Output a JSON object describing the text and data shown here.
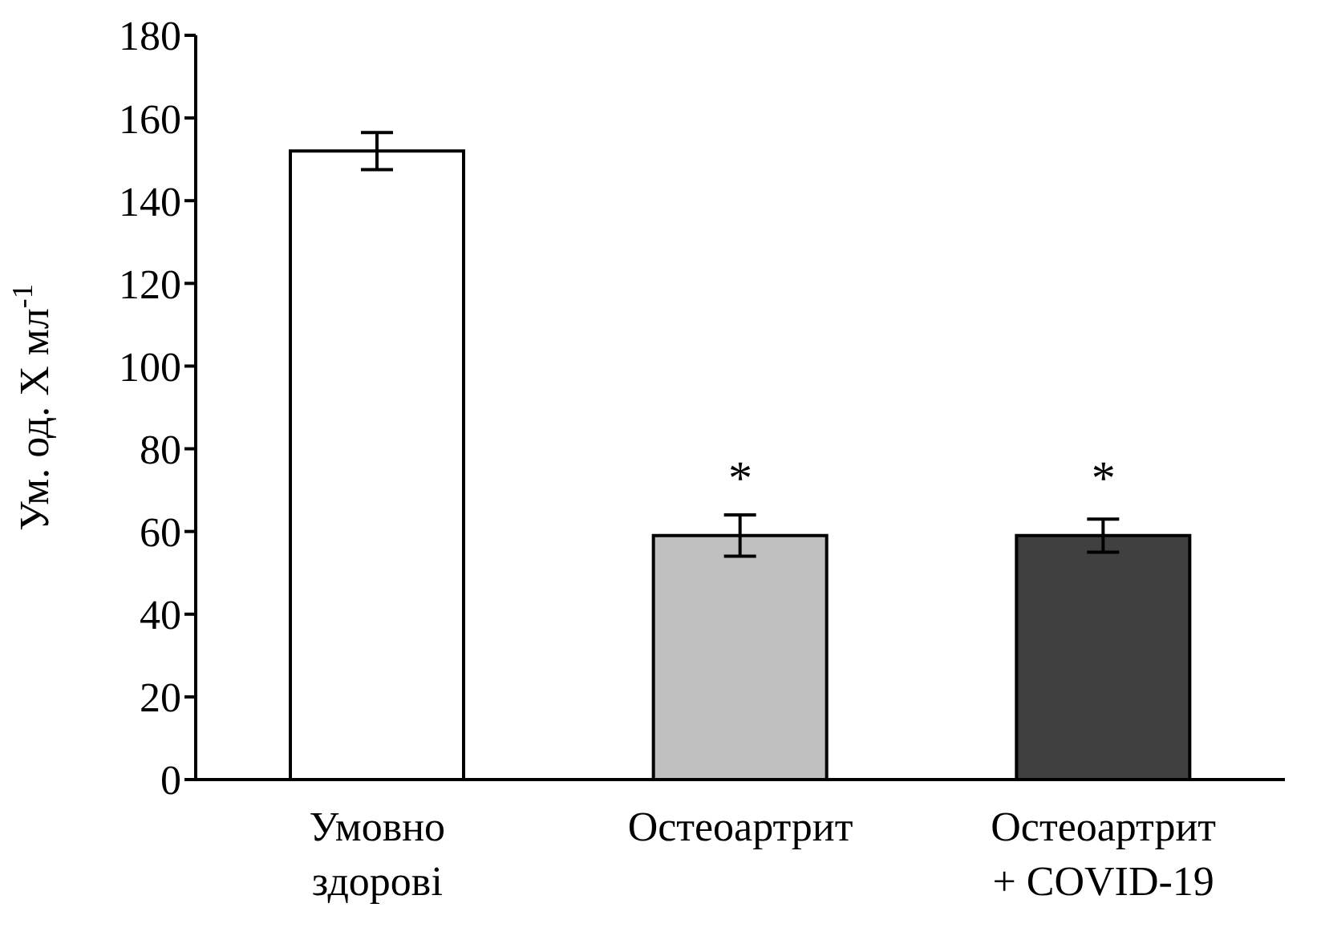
{
  "chart_data": {
    "type": "bar",
    "ylabel": "Ум. од. X мл$^{-1}$",
    "categories": [
      "Умовно здорові",
      "Остеоартрит",
      "Остеоартрит + COVID-19"
    ],
    "values": [
      152,
      59,
      59
    ],
    "errors": [
      4.5,
      5,
      4
    ],
    "colors": [
      "#ffffff",
      "#c0c0c0",
      "#404040"
    ],
    "ylim": [
      0,
      180
    ],
    "yticks": [
      0,
      20,
      40,
      60,
      80,
      100,
      120,
      140,
      160,
      180
    ],
    "grid": false,
    "annotations": [
      {
        "text": "*",
        "x": "Остеоартрит",
        "y": 59
      },
      {
        "text": "*",
        "x": "Остеоартрит + COVID-19",
        "y": 59
      }
    ]
  }
}
